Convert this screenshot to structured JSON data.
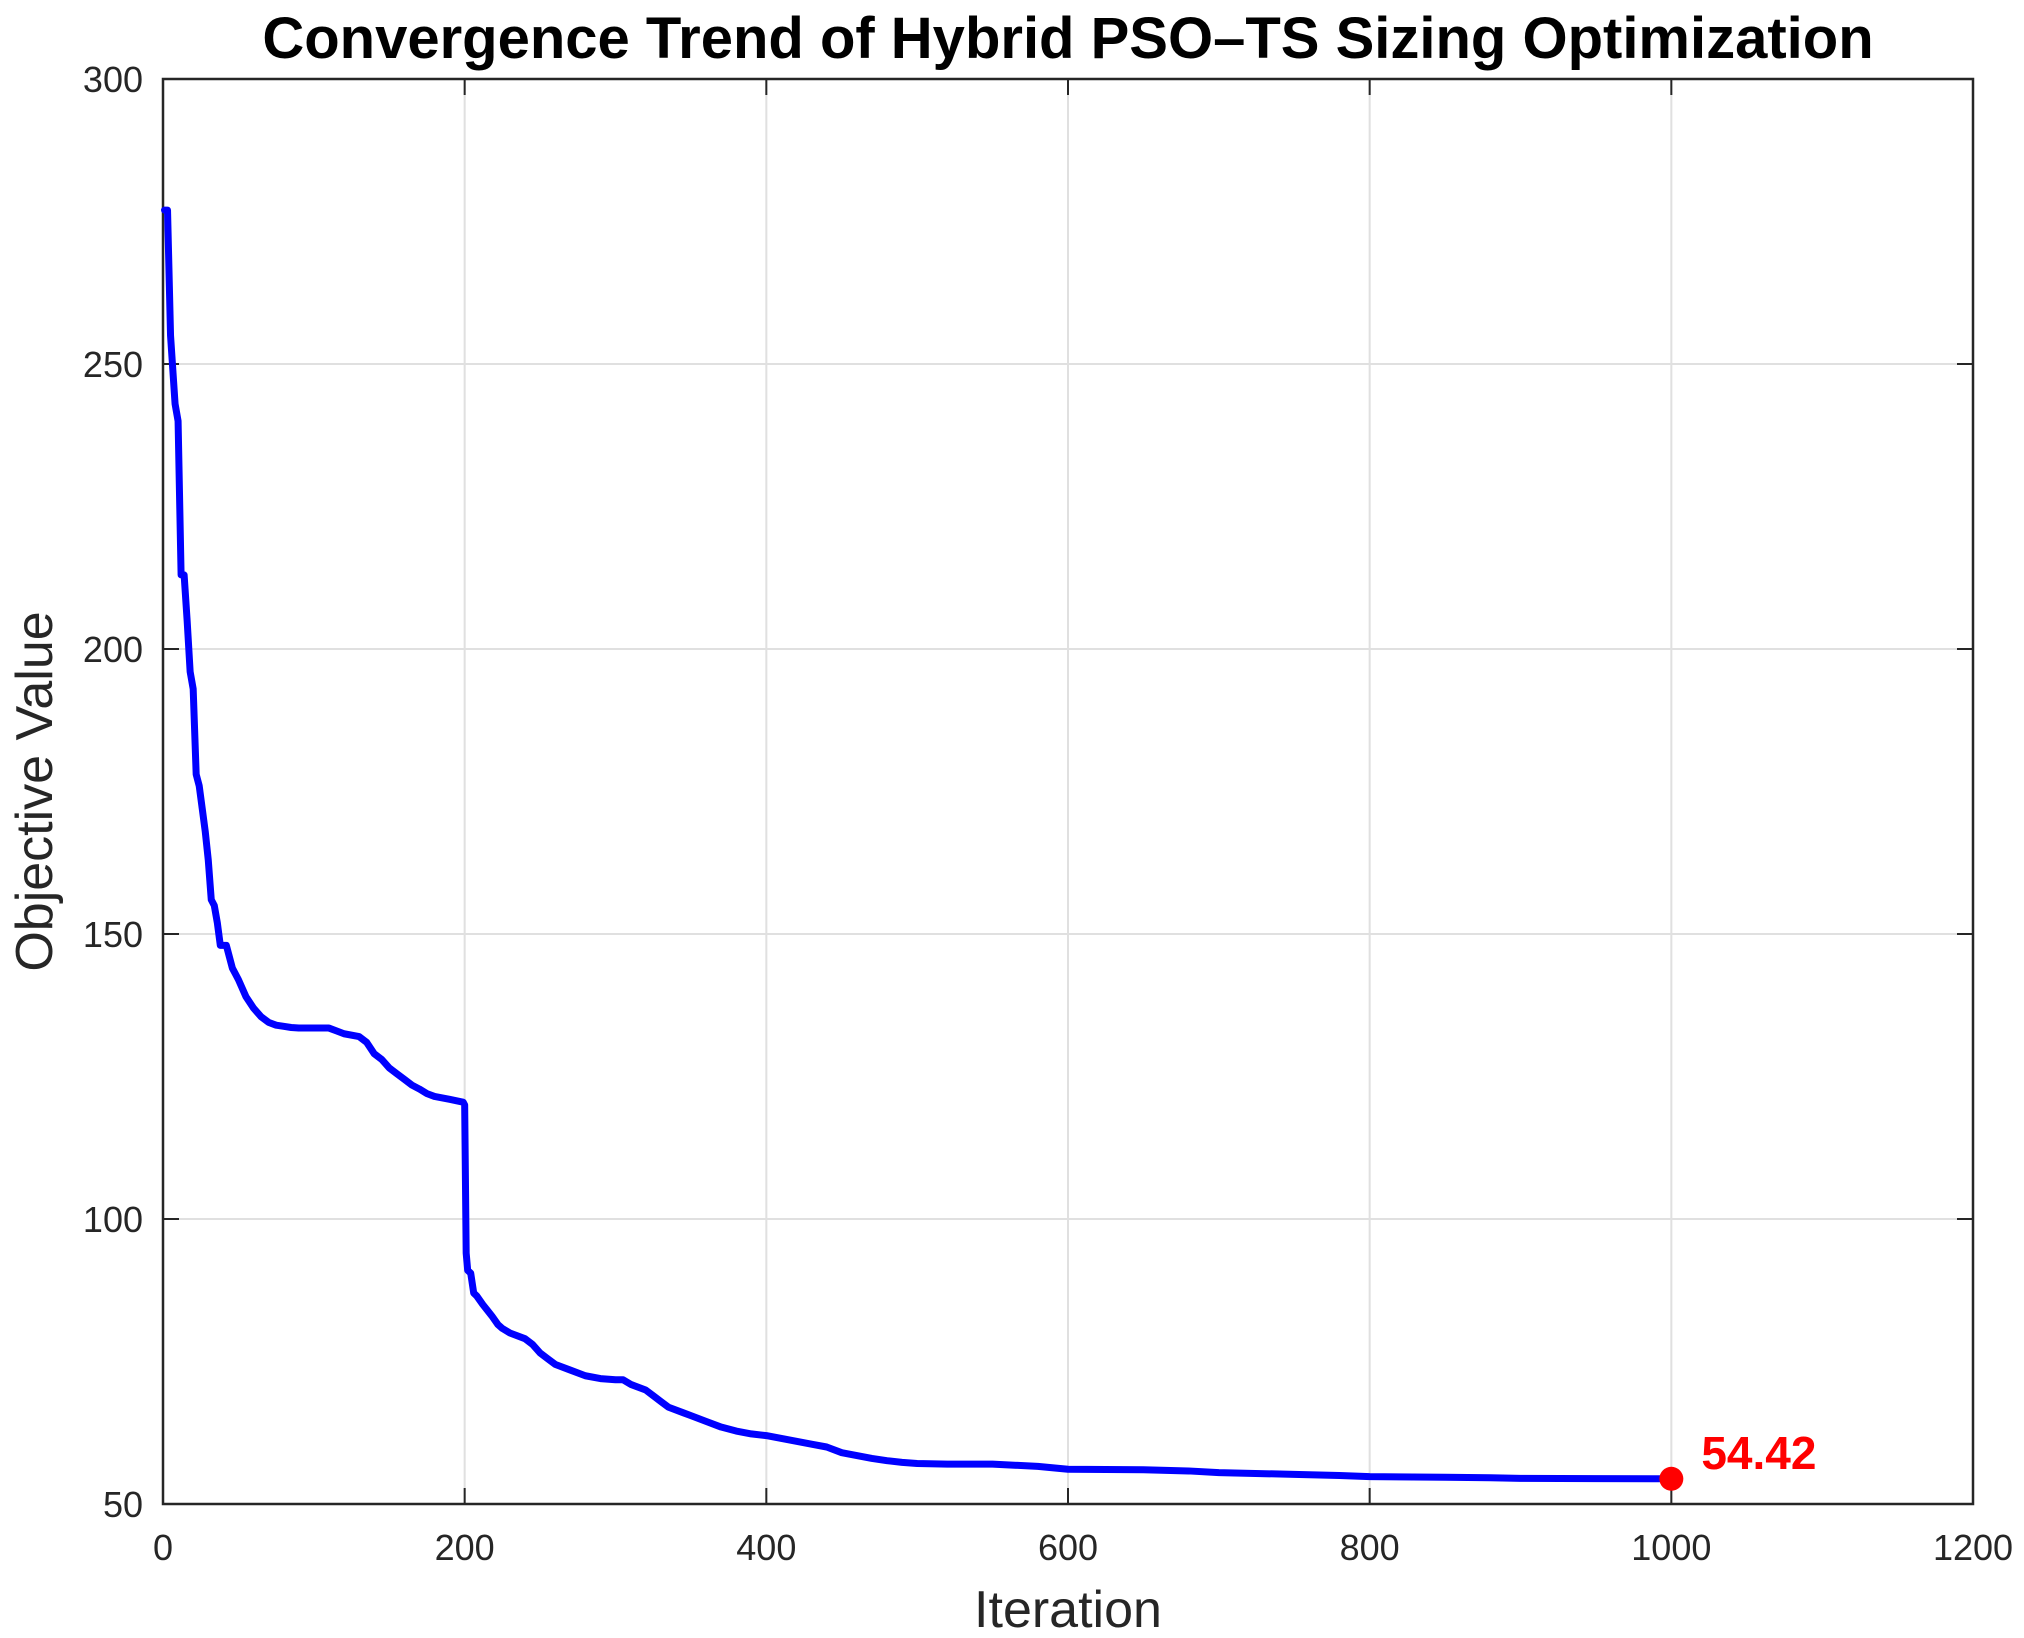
{
  "chart_data": {
    "type": "line",
    "title": "Convergence Trend of Hybrid PSO–TS Sizing Optimization",
    "xlabel": "Iteration",
    "ylabel": "Objective Value",
    "xlim": [
      0,
      1200
    ],
    "ylim": [
      50,
      300
    ],
    "xticks": [
      "0",
      "200",
      "400",
      "600",
      "800",
      "1000",
      "1200"
    ],
    "yticks": [
      "50",
      "100",
      "150",
      "200",
      "250",
      "300"
    ],
    "grid": true,
    "colors": {
      "line": "#0000ff",
      "marker": "#ff0000",
      "annotation": "#ff0000",
      "grid": "#e0e0e0",
      "axis": "#262626"
    },
    "series": [
      {
        "x": [
          1,
          3,
          5,
          8,
          10,
          12,
          14,
          16,
          18,
          20,
          22,
          24,
          26,
          28,
          30,
          32,
          34,
          36,
          38,
          40,
          42,
          44,
          46,
          48,
          50,
          55,
          60,
          65,
          70,
          75,
          80,
          85,
          90,
          100,
          110,
          115,
          120,
          130,
          135,
          140,
          145,
          150,
          155,
          160,
          165,
          170,
          175,
          180,
          190,
          199,
          200,
          201,
          202,
          204,
          206,
          208,
          212,
          215,
          218,
          222,
          225,
          230,
          240,
          245,
          250,
          255,
          260,
          270,
          280,
          290,
          300,
          305,
          310,
          320,
          325,
          330,
          335,
          345,
          350,
          360,
          370,
          380,
          390,
          400,
          410,
          420,
          430,
          440,
          450,
          460,
          470,
          480,
          490,
          500,
          520,
          550,
          580,
          600,
          650,
          680,
          700,
          750,
          780,
          800,
          850,
          880,
          900,
          950,
          1000
        ],
        "y": [
          277,
          277,
          255,
          243,
          240,
          213,
          213,
          205,
          196,
          193,
          178,
          176,
          172,
          168,
          163,
          156,
          155,
          152,
          148,
          148,
          148,
          146,
          144,
          143,
          142,
          139,
          137,
          135.5,
          134.5,
          134,
          133.8,
          133.6,
          133.5,
          133.5,
          133.5,
          133,
          132.5,
          132,
          131,
          129,
          128,
          126.5,
          125.5,
          124.5,
          123.5,
          122.8,
          122,
          121.5,
          121,
          120.5,
          120,
          94,
          91,
          90.5,
          87,
          86.5,
          85,
          84,
          83,
          81.5,
          80.8,
          80,
          79,
          78,
          76.5,
          75.5,
          74.5,
          73.5,
          72.5,
          72,
          71.8,
          71.8,
          71,
          70,
          69,
          68,
          67,
          66,
          65.5,
          64.5,
          63.5,
          62.8,
          62.3,
          62,
          61.5,
          61,
          60.5,
          60,
          59,
          58.5,
          58,
          57.6,
          57.3,
          57.1,
          57,
          57,
          56.6,
          56.1,
          56,
          55.8,
          55.5,
          55.2,
          55,
          54.8,
          54.7,
          54.6,
          54.5,
          54.45,
          54.42
        ]
      }
    ],
    "final_point": {
      "x": 1000,
      "y": 54.42
    },
    "annotation": "54.42"
  }
}
